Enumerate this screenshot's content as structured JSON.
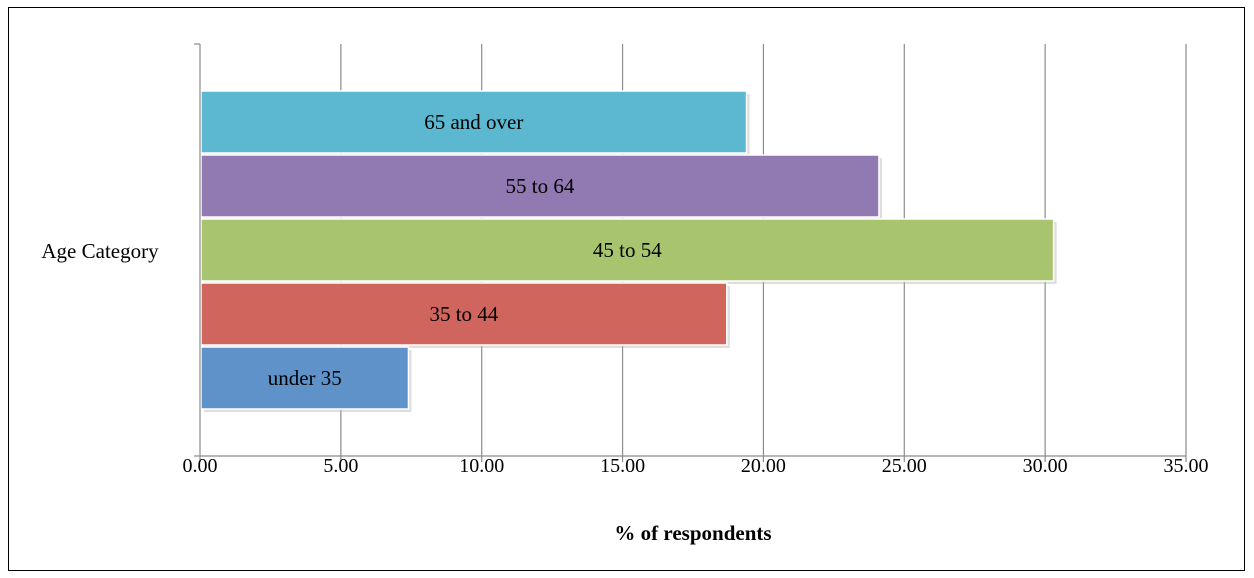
{
  "chart_data": {
    "type": "bar",
    "orientation": "horizontal",
    "category_label": "Age Category",
    "xlabel": "% of respondents",
    "xlim": [
      0,
      35
    ],
    "xticks": [
      "0.00",
      "5.00",
      "10.00",
      "15.00",
      "20.00",
      "25.00",
      "30.00",
      "35.00"
    ],
    "grid": true,
    "legend": "none",
    "series": [
      {
        "name": "65 and over",
        "value": 19.4,
        "color": "#5BB8D0"
      },
      {
        "name": "55 to 64",
        "value": 24.1,
        "color": "#9179B2"
      },
      {
        "name": "45 to 54",
        "value": 30.3,
        "color": "#A9C46F"
      },
      {
        "name": "35 to 44",
        "value": 18.7,
        "color": "#D0655E"
      },
      {
        "name": "under 35",
        "value": 7.4,
        "color": "#5E92C8"
      }
    ]
  }
}
